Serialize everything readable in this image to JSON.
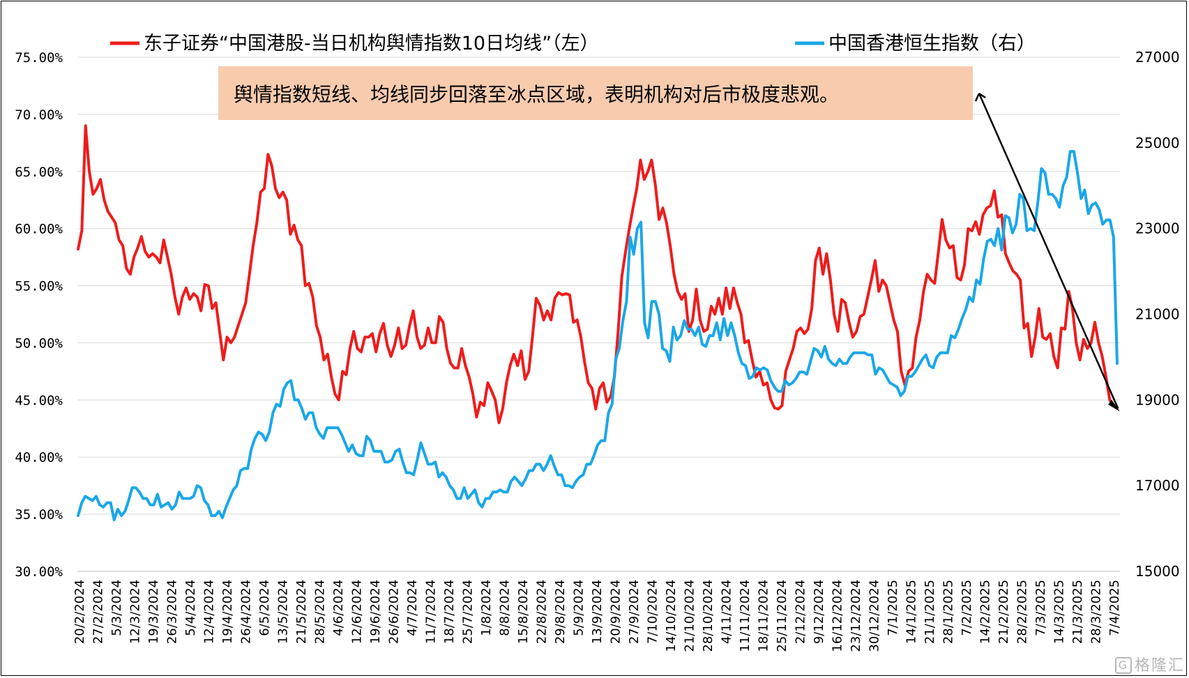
{
  "chart_data": {
    "type": "line",
    "legend_position": "top",
    "grid": true,
    "annotation": "舆情指数短线、均线同步回落至冰点区域，表明机构对后市极度悲观。",
    "annotation_bg": "#f8cbad",
    "y_left": {
      "range": [
        30,
        75
      ],
      "ticks": [
        30,
        35,
        40,
        45,
        50,
        55,
        60,
        65,
        70,
        75
      ],
      "tick_labels": [
        "30.00%",
        "35.00%",
        "40.00%",
        "45.00%",
        "50.00%",
        "55.00%",
        "60.00%",
        "65.00%",
        "70.00%",
        "75.00%"
      ]
    },
    "y_right": {
      "range": [
        15000,
        27000
      ],
      "ticks": [
        15000,
        17000,
        19000,
        21000,
        23000,
        25000,
        27000
      ],
      "tick_labels": [
        "15000",
        "17000",
        "19000",
        "21000",
        "23000",
        "25000",
        "27000"
      ]
    },
    "x_tick_labels": [
      "20/2/2024",
      "27/2/2024",
      "5/3/2024",
      "12/3/2024",
      "19/3/2024",
      "26/3/2024",
      "5/4/2024",
      "12/4/2024",
      "19/4/2024",
      "26/4/2024",
      "6/5/2024",
      "13/5/2024",
      "21/5/2024",
      "28/5/2024",
      "4/6/2024",
      "12/6/2024",
      "19/6/2024",
      "26/6/2024",
      "4/7/2024",
      "11/7/2024",
      "18/7/2024",
      "25/7/2024",
      "1/8/2024",
      "8/8/2024",
      "15/8/2024",
      "22/8/2024",
      "29/8/2024",
      "5/9/2024",
      "13/9/2024",
      "20/9/2024",
      "27/9/2024",
      "7/10/2024",
      "14/10/2024",
      "21/10/2024",
      "28/10/2024",
      "4/11/2024",
      "11/11/2024",
      "18/11/2024",
      "25/11/2024",
      "2/12/2024",
      "9/12/2024",
      "16/12/2024",
      "23/12/2024",
      "30/12/2024",
      "7/1/2025",
      "14/1/2025",
      "21/1/2025",
      "28/1/2025",
      "7/2/2025",
      "14/2/2025",
      "21/2/2025",
      "28/2/2025",
      "7/3/2025",
      "14/3/2025",
      "21/3/2025",
      "28/3/2025",
      "7/4/2025"
    ],
    "series": [
      {
        "name": "东子证券“中国港股-当日机构舆情指数10日均线”（左）",
        "axis": "left",
        "color": "#ee1c1c",
        "values": [
          58.2,
          59.8,
          69.0,
          65.0,
          63.0,
          63.5,
          64.3,
          62.5,
          61.5,
          61.0,
          60.5,
          59.0,
          58.5,
          56.5,
          56.0,
          57.5,
          58.3,
          59.3,
          58.0,
          57.5,
          57.8,
          57.5,
          57.0,
          59.0,
          57.5,
          56.0,
          54.0,
          52.5,
          54.0,
          54.8,
          53.8,
          54.3,
          54.0,
          52.8,
          55.1,
          55.0,
          53.0,
          53.5,
          51.0,
          48.5,
          50.5,
          50.0,
          50.5,
          51.5,
          52.5,
          53.5,
          56.0,
          58.5,
          60.5,
          63.2,
          63.5,
          66.5,
          65.5,
          63.5,
          62.7,
          63.2,
          62.5,
          59.5,
          60.3,
          59.0,
          58.5,
          55.0,
          55.2,
          54.0,
          51.5,
          50.5,
          48.5,
          49.0,
          47.0,
          45.5,
          45.0,
          47.5,
          47.2,
          49.5,
          51.0,
          49.5,
          49.2,
          50.5,
          50.5,
          50.8,
          49.2,
          50.8,
          51.7,
          49.8,
          48.8,
          49.8,
          51.3,
          49.5,
          49.8,
          51.5,
          52.8,
          50.5,
          49.5,
          49.8,
          51.3,
          50.0,
          50.0,
          52.3,
          51.8,
          49.5,
          48.2,
          47.8,
          47.8,
          49.5,
          48.0,
          47.0,
          45.5,
          43.5,
          44.8,
          44.5,
          46.5,
          45.8,
          45.0,
          43.0,
          44.2,
          46.5,
          48.0,
          49.0,
          48.0,
          49.3,
          46.8,
          47.5,
          50.5,
          53.9,
          53.3,
          52.0,
          52.8,
          52.0,
          53.9,
          54.4,
          54.2,
          54.3,
          54.2,
          51.8,
          52.0,
          50.5,
          48.3,
          46.5,
          46.0,
          44.2,
          46.0,
          46.5,
          44.8,
          45.3,
          47.0,
          51.0,
          55.8,
          58.0,
          60.0,
          61.8,
          63.5,
          66.0,
          64.3,
          65.0,
          66.0,
          63.8,
          60.8,
          61.8,
          60.5,
          58.5,
          56.0,
          54.5,
          53.8,
          54.3,
          51.0,
          52.0,
          54.7,
          52.0,
          51.0,
          51.2,
          53.2,
          52.5,
          53.9,
          52.5,
          54.8,
          53.0,
          54.8,
          53.5,
          52.5,
          50.0,
          50.2,
          48.5,
          47.0,
          47.5,
          46.3,
          46.5,
          45.0,
          44.3,
          44.2,
          44.5,
          47.5,
          48.5,
          49.5,
          51.0,
          51.3,
          50.8,
          51.2,
          53.0,
          57.2,
          58.3,
          56.0,
          57.8,
          55.5,
          52.5,
          51.0,
          53.8,
          53.5,
          51.8,
          50.5,
          51.0,
          52.3,
          52.5,
          54.0,
          55.5,
          57.2,
          54.5,
          55.5,
          55.0,
          53.5,
          52.0,
          51.0,
          47.5,
          46.3,
          47.5,
          47.8,
          50.5,
          52.0,
          54.5,
          56.0,
          55.5,
          55.2,
          58.0,
          60.8,
          59.0,
          58.3,
          58.5,
          55.7,
          55.5,
          56.8,
          60.0,
          59.8,
          60.6,
          59.5,
          61.2,
          61.8,
          62.0,
          63.3,
          61.0,
          61.2,
          57.8,
          57.0,
          56.3,
          56.0,
          55.5,
          51.3,
          51.7,
          48.8,
          50.5,
          53.0,
          50.5,
          50.3,
          50.8,
          48.8,
          47.8,
          51.3,
          51.2,
          54.5,
          53.0,
          50.0,
          48.5,
          50.3,
          49.5,
          50.0,
          51.8,
          50.0,
          48.8,
          47.0,
          45.0,
          44.5,
          44.3
        ]
      },
      {
        "name": "中国香港恒生指数（右）",
        "axis": "right",
        "color": "#1aa7e8",
        "values": [
          16300,
          16600,
          16750,
          16700,
          16650,
          16750,
          16550,
          16500,
          16600,
          16600,
          16200,
          16450,
          16300,
          16400,
          16650,
          16950,
          16950,
          16850,
          16700,
          16700,
          16550,
          16550,
          16800,
          16500,
          16550,
          16600,
          16450,
          16550,
          16850,
          16700,
          16700,
          16700,
          16750,
          17000,
          16950,
          16650,
          16550,
          16300,
          16300,
          16400,
          16250,
          16500,
          16700,
          16900,
          17000,
          17350,
          17400,
          17400,
          17850,
          18100,
          18250,
          18200,
          18050,
          18250,
          18700,
          18900,
          18850,
          19250,
          19400,
          19450,
          19000,
          19000,
          18800,
          18550,
          18700,
          18700,
          18350,
          18200,
          18100,
          18350,
          18350,
          18350,
          18350,
          18200,
          18000,
          17800,
          17950,
          17750,
          17700,
          17700,
          18150,
          18050,
          17800,
          17800,
          17800,
          17550,
          17550,
          17600,
          17800,
          17850,
          17550,
          17300,
          17300,
          17250,
          17600,
          18000,
          17750,
          17500,
          17500,
          17550,
          17200,
          17300,
          17200,
          17000,
          16900,
          16700,
          16700,
          16950,
          16700,
          16800,
          16900,
          16600,
          16500,
          16700,
          16700,
          16850,
          16850,
          16900,
          16850,
          16850,
          17100,
          17200,
          17100,
          17000,
          17150,
          17350,
          17350,
          17500,
          17500,
          17350,
          17500,
          17700,
          17450,
          17250,
          17250,
          17000,
          17000,
          16950,
          17100,
          17200,
          17250,
          17500,
          17500,
          17700,
          17950,
          18050,
          18050,
          18700,
          18900,
          19950,
          20200,
          20850,
          21300,
          22800,
          22400,
          23000,
          23150,
          20800,
          20450,
          21300,
          21300,
          21000,
          20200,
          20150,
          19900,
          20700,
          20400,
          20500,
          20850,
          20650,
          20650,
          20500,
          20700,
          20300,
          20250,
          20500,
          20500,
          20800,
          20400,
          20900,
          20500,
          20800,
          20500,
          20100,
          19850,
          19800,
          19500,
          19550,
          19750,
          19700,
          19750,
          19700,
          19450,
          19300,
          19200,
          19200,
          19450,
          19350,
          19400,
          19500,
          19650,
          19650,
          19600,
          19900,
          20200,
          20150,
          20000,
          20250,
          19950,
          19850,
          19800,
          19950,
          19850,
          19850,
          20000,
          20100,
          20100,
          20100,
          20100,
          20050,
          20050,
          19600,
          19750,
          19700,
          19550,
          19400,
          19350,
          19300,
          19100,
          19200,
          19550,
          19550,
          19650,
          19800,
          19950,
          20050,
          19800,
          19750,
          20000,
          20100,
          20100,
          20100,
          20500,
          20450,
          20650,
          20900,
          21100,
          21400,
          21300,
          21800,
          21700,
          22300,
          22700,
          22750,
          22600,
          23000,
          22500,
          23300,
          23250,
          22900,
          23100,
          23800,
          23700,
          22950,
          23000,
          22950,
          23600,
          24400,
          24300,
          23800,
          23800,
          23700,
          23500,
          24000,
          24200,
          24800,
          24800,
          24300,
          23700,
          23900,
          23350,
          23550,
          23600,
          23450,
          23100,
          23200,
          23200,
          22800,
          19850
        ]
      }
    ]
  },
  "watermark": {
    "box": "G",
    "text": "格隆汇"
  }
}
